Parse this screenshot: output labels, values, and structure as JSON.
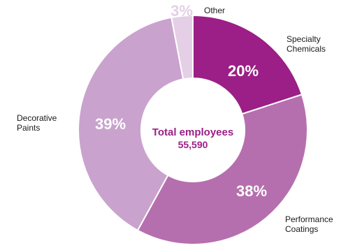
{
  "chart_data": {
    "type": "pie",
    "variant": "donut",
    "center_title": "Total employees",
    "center_value": "55,590",
    "slices": [
      {
        "name": "Specialty Chemicals",
        "label_lines": [
          "Specialty",
          "Chemicals"
        ],
        "value": 20,
        "display": "20%",
        "color": "#9b1f86"
      },
      {
        "name": "Performance Coatings",
        "label_lines": [
          "Performance",
          "Coatings"
        ],
        "value": 38,
        "display": "38%",
        "color": "#b56fae"
      },
      {
        "name": "Decorative Paints",
        "label_lines": [
          "Decorative",
          "Paints"
        ],
        "value": 39,
        "display": "39%",
        "color": "#c9a2cd"
      },
      {
        "name": "Other",
        "label_lines": [
          "Other"
        ],
        "value": 3,
        "display": "3%",
        "color": "#e4cfe6"
      }
    ]
  }
}
